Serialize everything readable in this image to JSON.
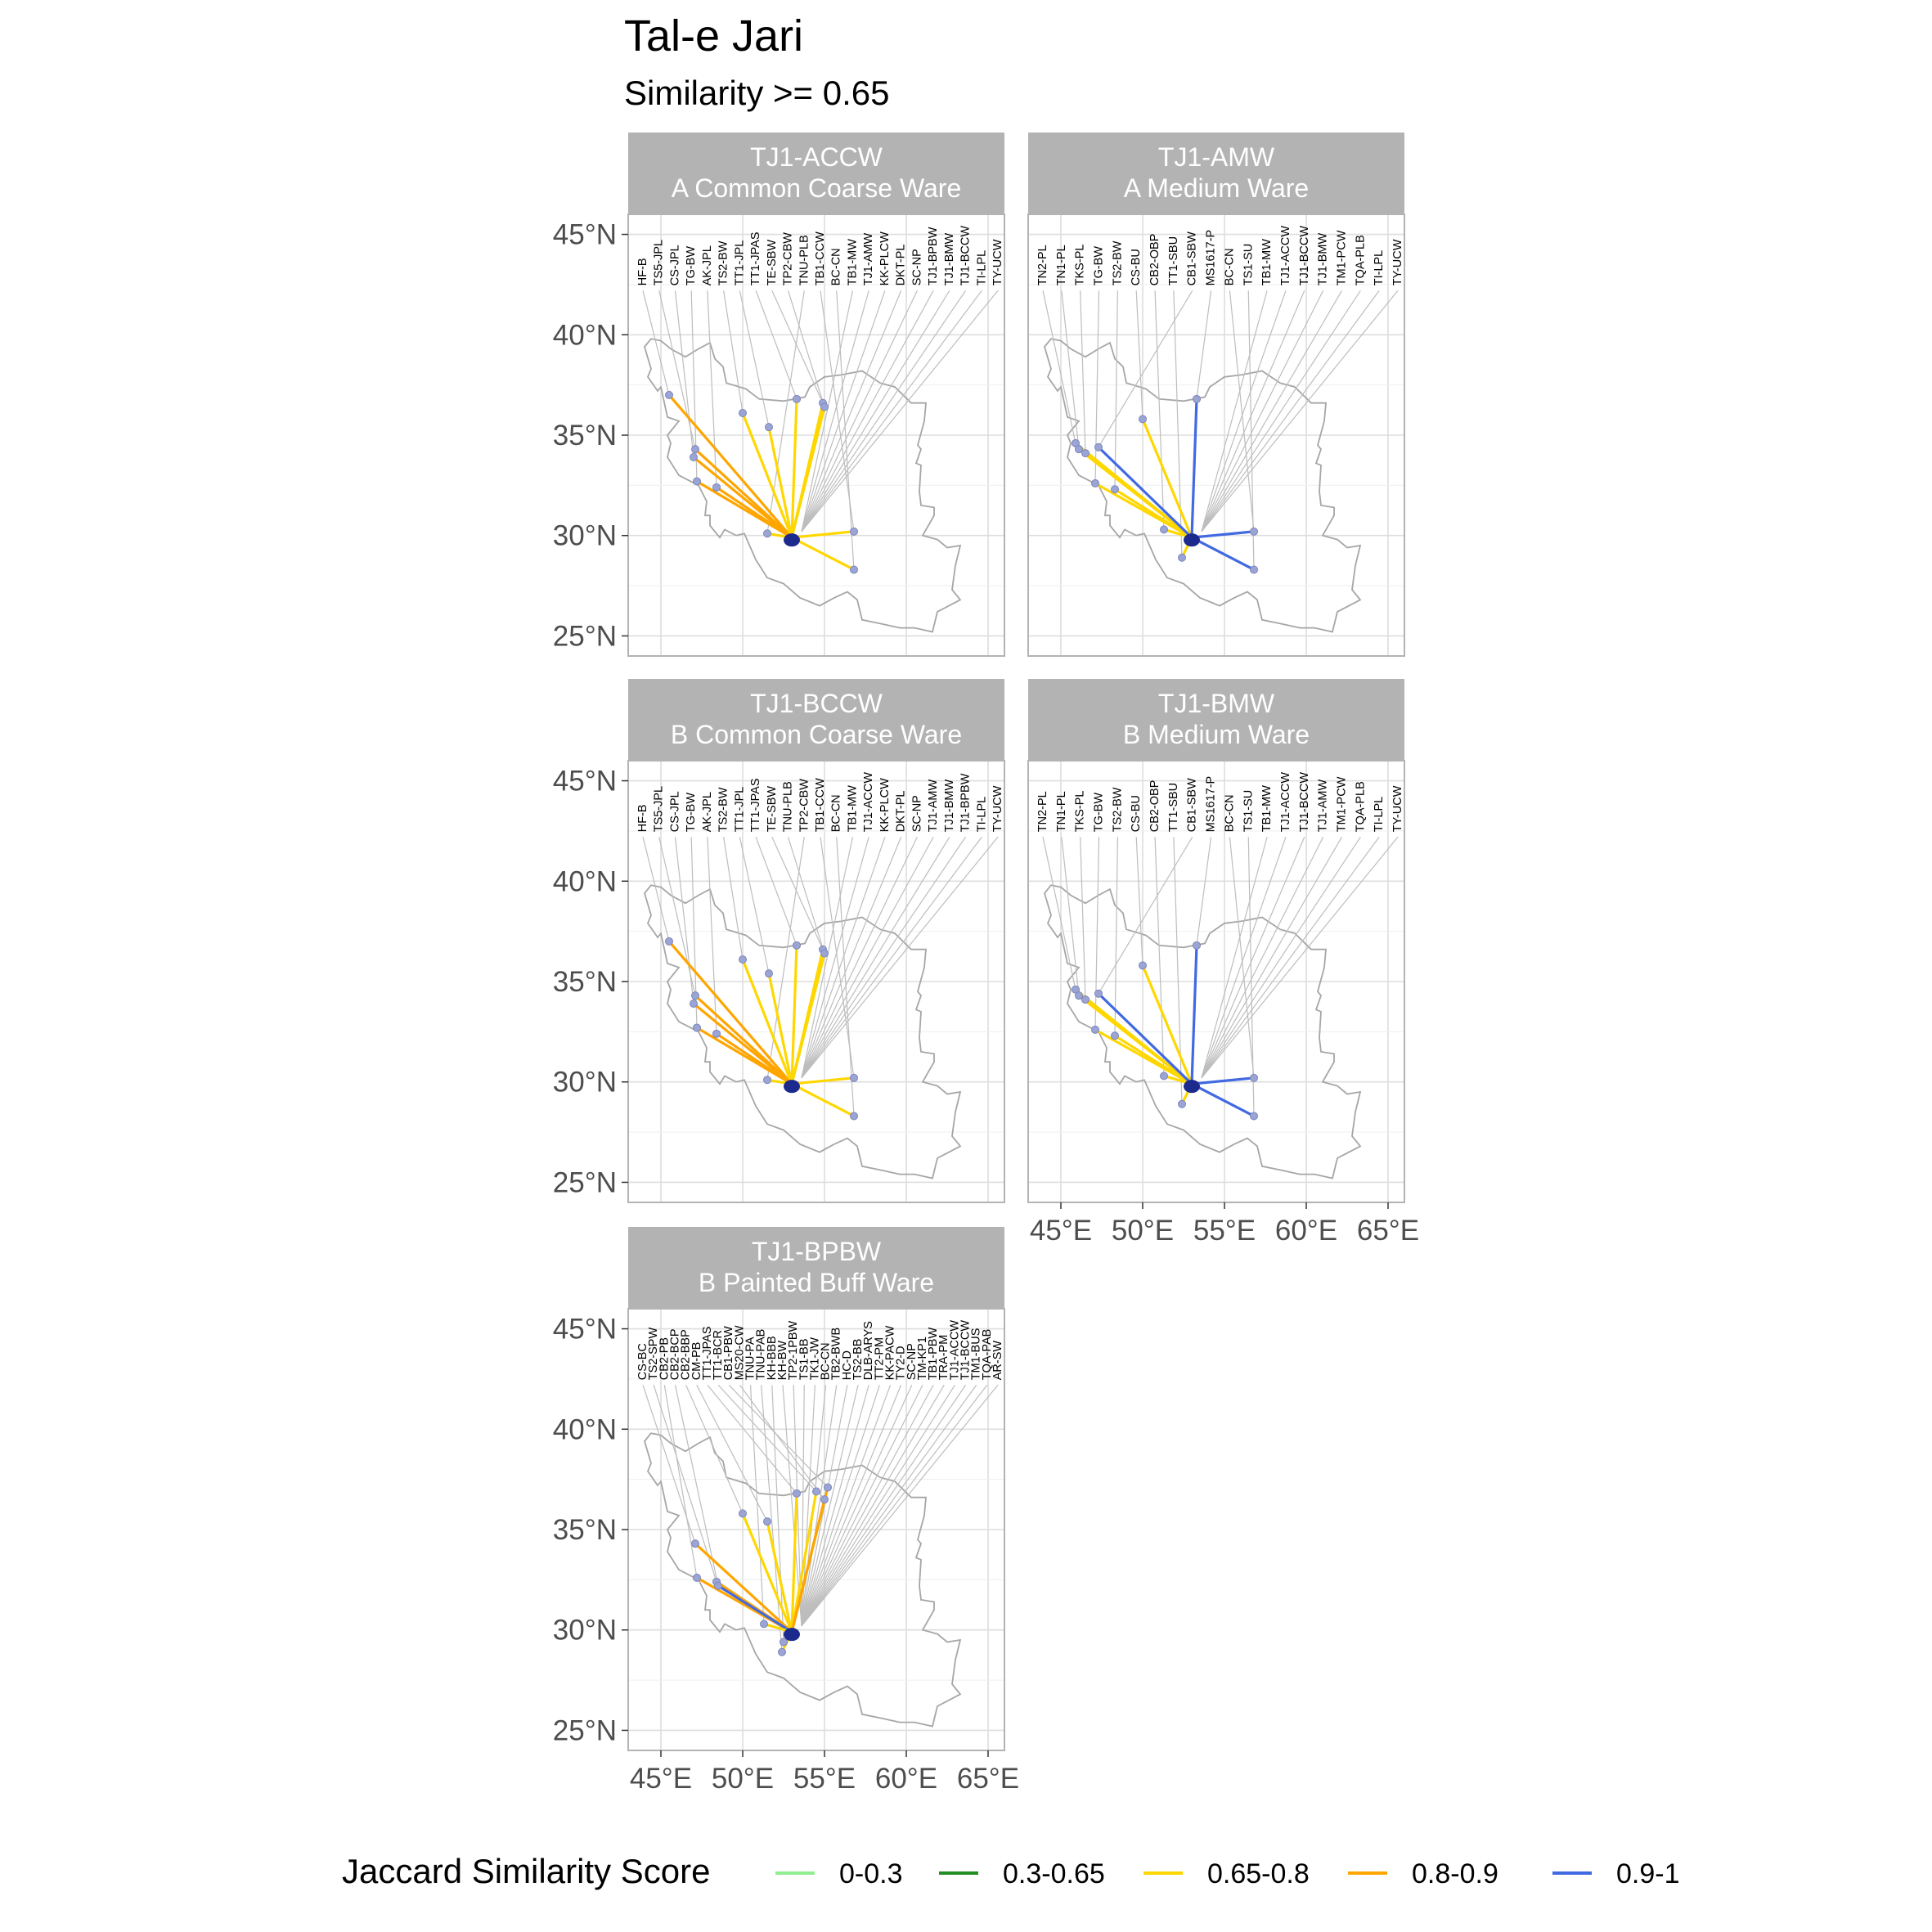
{
  "chart_data": {
    "type": "map-network",
    "title": "Tal-e Jari",
    "subtitle": "Similarity >= 0.65",
    "x_ticks": [
      "45°E",
      "50°E",
      "55°E",
      "60°E",
      "65°E"
    ],
    "y_ticks": [
      "25°N",
      "30°N",
      "35°N",
      "40°N",
      "45°N"
    ],
    "xlim": [
      43,
      66
    ],
    "ylim": [
      24,
      46
    ],
    "origin": {
      "lon": 53.0,
      "lat": 29.9
    },
    "legend": {
      "title": "Jaccard Similarity Score",
      "items": [
        {
          "label": "0-0.3",
          "color": "#90EE90"
        },
        {
          "label": "0.3-0.65",
          "color": "#228B22"
        },
        {
          "label": "0.65-0.8",
          "color": "#FFD700"
        },
        {
          "label": "0.8-0.9",
          "color": "#FFA500"
        },
        {
          "label": "0.9-1",
          "color": "#4169E1"
        }
      ]
    },
    "panels": [
      {
        "code": "TJ1-ACCW",
        "name": "A Common Coarse Ware",
        "sites": [
          "HF-B",
          "TS5-JPL",
          "CS-JPL",
          "TG-BW",
          "AK-JPL",
          "TS2-BW",
          "TT1-JPL",
          "TT1-JPAS",
          "TE-SBW",
          "TP2-CBW",
          "TNU-PLB",
          "TB1-CCW",
          "BC-CN",
          "TB1-MW",
          "TJ1-AMW",
          "KK-PLCW",
          "DKT-PL",
          "SC-NP",
          "TJ1-BPBW",
          "TJ1-BMW",
          "TJ1-BCCW",
          "TI-LPL",
          "TY-UCW"
        ],
        "links": [
          {
            "lon": 45.5,
            "lat": 37.0,
            "score": "0.8-0.9"
          },
          {
            "lon": 47.1,
            "lat": 34.3,
            "score": "0.8-0.9"
          },
          {
            "lon": 47.0,
            "lat": 33.9,
            "score": "0.8-0.9"
          },
          {
            "lon": 47.2,
            "lat": 32.7,
            "score": "0.8-0.9"
          },
          {
            "lon": 48.4,
            "lat": 32.4,
            "score": "0.8-0.9"
          },
          {
            "lon": 50.0,
            "lat": 36.1,
            "score": "0.65-0.8"
          },
          {
            "lon": 51.6,
            "lat": 35.4,
            "score": "0.65-0.8"
          },
          {
            "lon": 53.3,
            "lat": 36.8,
            "score": "0.65-0.8"
          },
          {
            "lon": 54.9,
            "lat": 36.6,
            "score": "0.65-0.8"
          },
          {
            "lon": 55.0,
            "lat": 36.4,
            "score": "0.65-0.8"
          },
          {
            "lon": 51.5,
            "lat": 30.1,
            "score": "0.65-0.8"
          },
          {
            "lon": 56.8,
            "lat": 30.2,
            "score": "0.65-0.8"
          },
          {
            "lon": 56.8,
            "lat": 28.3,
            "score": "0.65-0.8"
          }
        ]
      },
      {
        "code": "TJ1-AMW",
        "name": "A Medium Ware",
        "sites": [
          "TN2-PL",
          "TN1-PL",
          "TKS-PL",
          "TG-BW",
          "TS2-BW",
          "CS-BU",
          "CB2-OBP",
          "TT1-SBU",
          "CB1-SBW",
          "MS1617-P",
          "BC-CN",
          "TS1-SU",
          "TB1-MW",
          "TJ1-ACCW",
          "TJ1-BCCW",
          "TJ1-BMW",
          "TM1-PCW",
          "TQA-PLB",
          "TI-LPL",
          "TY-UCW"
        ],
        "links": [
          {
            "lon": 45.9,
            "lat": 34.6,
            "score": "0.65-0.8"
          },
          {
            "lon": 46.1,
            "lat": 34.3,
            "score": "0.65-0.8"
          },
          {
            "lon": 46.5,
            "lat": 34.1,
            "score": "0.65-0.8"
          },
          {
            "lon": 47.1,
            "lat": 32.6,
            "score": "0.65-0.8"
          },
          {
            "lon": 48.3,
            "lat": 32.3,
            "score": "0.65-0.8"
          },
          {
            "lon": 50.0,
            "lat": 35.8,
            "score": "0.65-0.8"
          },
          {
            "lon": 51.3,
            "lat": 30.3,
            "score": "0.65-0.8"
          },
          {
            "lon": 52.4,
            "lat": 28.9,
            "score": "0.65-0.8"
          },
          {
            "lon": 47.3,
            "lat": 34.4,
            "score": "0.9-1"
          },
          {
            "lon": 53.3,
            "lat": 36.8,
            "score": "0.9-1"
          },
          {
            "lon": 56.8,
            "lat": 30.2,
            "score": "0.9-1"
          },
          {
            "lon": 56.8,
            "lat": 28.3,
            "score": "0.9-1"
          }
        ]
      },
      {
        "code": "TJ1-BCCW",
        "name": "B Common Coarse Ware",
        "sites": [
          "HF-B",
          "TS5-JPL",
          "CS-JPL",
          "TG-BW",
          "AK-JPL",
          "TS2-BW",
          "TT1-JPL",
          "TT1-JPAS",
          "TE-SBW",
          "TNU-PLB",
          "TP2-CBW",
          "TB1-CCW",
          "BC-CN",
          "TB1-MW",
          "TJ1-ACCW",
          "KK-PLCW",
          "DKT-PL",
          "SC-NP",
          "TJ1-AMW",
          "TJ1-BMW",
          "TJ1-BPBW",
          "TI-LPL",
          "TY-UCW"
        ],
        "links": [
          {
            "lon": 45.5,
            "lat": 37.0,
            "score": "0.8-0.9"
          },
          {
            "lon": 47.1,
            "lat": 34.3,
            "score": "0.8-0.9"
          },
          {
            "lon": 47.0,
            "lat": 33.9,
            "score": "0.8-0.9"
          },
          {
            "lon": 47.2,
            "lat": 32.7,
            "score": "0.8-0.9"
          },
          {
            "lon": 48.4,
            "lat": 32.4,
            "score": "0.8-0.9"
          },
          {
            "lon": 50.0,
            "lat": 36.1,
            "score": "0.65-0.8"
          },
          {
            "lon": 51.6,
            "lat": 35.4,
            "score": "0.65-0.8"
          },
          {
            "lon": 53.3,
            "lat": 36.8,
            "score": "0.65-0.8"
          },
          {
            "lon": 54.9,
            "lat": 36.6,
            "score": "0.65-0.8"
          },
          {
            "lon": 55.0,
            "lat": 36.4,
            "score": "0.65-0.8"
          },
          {
            "lon": 51.5,
            "lat": 30.1,
            "score": "0.65-0.8"
          },
          {
            "lon": 56.8,
            "lat": 30.2,
            "score": "0.65-0.8"
          },
          {
            "lon": 56.8,
            "lat": 28.3,
            "score": "0.65-0.8"
          }
        ]
      },
      {
        "code": "TJ1-BMW",
        "name": "B Medium Ware",
        "sites": [
          "TN2-PL",
          "TN1-PL",
          "TKS-PL",
          "TG-BW",
          "TS2-BW",
          "CS-BU",
          "CB2-OBP",
          "TT1-SBU",
          "CB1-SBW",
          "MS1617-P",
          "BC-CN",
          "TS1-SU",
          "TB1-MW",
          "TJ1-ACCW",
          "TJ1-BCCW",
          "TJ1-AMW",
          "TM1-PCW",
          "TQA-PLB",
          "TI-LPL",
          "TY-UCW"
        ],
        "links": [
          {
            "lon": 45.9,
            "lat": 34.6,
            "score": "0.65-0.8"
          },
          {
            "lon": 46.1,
            "lat": 34.3,
            "score": "0.65-0.8"
          },
          {
            "lon": 46.5,
            "lat": 34.1,
            "score": "0.65-0.8"
          },
          {
            "lon": 47.1,
            "lat": 32.6,
            "score": "0.65-0.8"
          },
          {
            "lon": 48.3,
            "lat": 32.3,
            "score": "0.65-0.8"
          },
          {
            "lon": 50.0,
            "lat": 35.8,
            "score": "0.65-0.8"
          },
          {
            "lon": 51.3,
            "lat": 30.3,
            "score": "0.65-0.8"
          },
          {
            "lon": 52.4,
            "lat": 28.9,
            "score": "0.65-0.8"
          },
          {
            "lon": 47.3,
            "lat": 34.4,
            "score": "0.9-1"
          },
          {
            "lon": 53.3,
            "lat": 36.8,
            "score": "0.9-1"
          },
          {
            "lon": 56.8,
            "lat": 30.2,
            "score": "0.9-1"
          },
          {
            "lon": 56.8,
            "lat": 28.3,
            "score": "0.9-1"
          }
        ]
      },
      {
        "code": "TJ1-BPBW",
        "name": "B Painted Buff Ware",
        "sites": [
          "CS-BC",
          "TS2-SPW",
          "CB2-PB",
          "CB2-BCP",
          "CB2-BBP",
          "CM-PB",
          "TT1-JPAS",
          "TT1-BCR",
          "CB1-PBW",
          "MS20-CW",
          "TNU-PA",
          "TNU-PAB",
          "KH-BBB",
          "KH-BW",
          "TP2-1PBW",
          "TS1-BB",
          "TK1-JW",
          "BC-CN",
          "TB2-BWB",
          "HC-D",
          "TS2-BB",
          "DLB-ARYS",
          "TT2-PM",
          "KK-PACW",
          "TY2-D",
          "SC-NP",
          "TM-KP1",
          "TB1-PBW",
          "TRA-PM",
          "TJ1-ACCW",
          "TJ1-BCCW",
          "TM1-BUS",
          "TQA-PAB",
          "AR-SW"
        ],
        "links": [
          {
            "lon": 47.1,
            "lat": 34.3,
            "score": "0.8-0.9"
          },
          {
            "lon": 48.4,
            "lat": 32.4,
            "score": "0.8-0.9"
          },
          {
            "lon": 47.2,
            "lat": 32.6,
            "score": "0.8-0.9"
          },
          {
            "lon": 48.5,
            "lat": 32.2,
            "score": "0.9-1"
          },
          {
            "lon": 50.0,
            "lat": 35.8,
            "score": "0.65-0.8"
          },
          {
            "lon": 51.5,
            "lat": 35.4,
            "score": "0.65-0.8"
          },
          {
            "lon": 53.3,
            "lat": 36.8,
            "score": "0.65-0.8"
          },
          {
            "lon": 54.5,
            "lat": 36.9,
            "score": "0.65-0.8"
          },
          {
            "lon": 55.2,
            "lat": 37.1,
            "score": "0.8-0.9"
          },
          {
            "lon": 55.0,
            "lat": 36.5,
            "score": "0.8-0.9"
          },
          {
            "lon": 51.3,
            "lat": 30.3,
            "score": "0.65-0.8"
          },
          {
            "lon": 52.4,
            "lat": 28.9,
            "score": "0.65-0.8"
          },
          {
            "lon": 52.5,
            "lat": 29.4,
            "score": "0.65-0.8"
          }
        ]
      }
    ]
  }
}
